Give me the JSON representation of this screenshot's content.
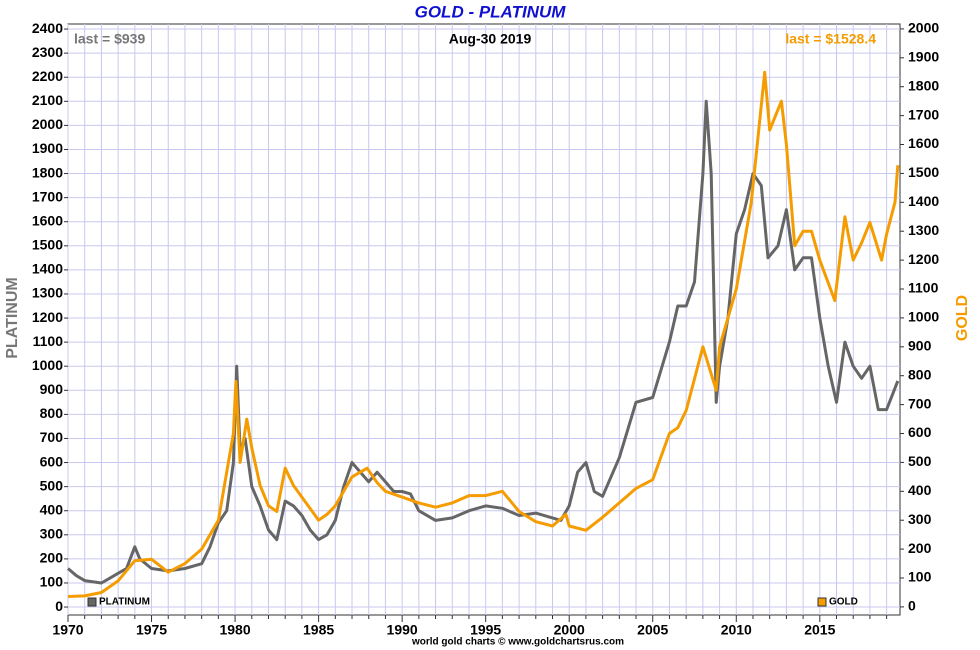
{
  "chart_data": {
    "type": "line",
    "title": "GOLD - PLATINUM",
    "date_label": "Aug-30  2019",
    "last_labels": [
      {
        "text": "last = $939",
        "series": 0
      },
      {
        "text": "last = $1528.4",
        "series": 1
      }
    ],
    "y_label": "PLATINUM",
    "y2_label": "GOLD",
    "footer": "world gold charts © www.goldchartsrus.com",
    "xlim": [
      1970,
      2019.8
    ],
    "xticks": [
      1970,
      1975,
      1980,
      1985,
      1990,
      1995,
      2000,
      2005,
      2010,
      2015
    ],
    "xminorticks": [
      1971,
      1972,
      1973,
      1974,
      1976,
      1977,
      1978,
      1979,
      1981,
      1982,
      1983,
      1984,
      1986,
      1987,
      1988,
      1989,
      1991,
      1992,
      1993,
      1994,
      1996,
      1997,
      1998,
      1999,
      2001,
      2002,
      2003,
      2004,
      2006,
      2007,
      2008,
      2009,
      2011,
      2012,
      2013,
      2014,
      2016,
      2017,
      2018,
      2019
    ],
    "ylim": [
      -33,
      2421
    ],
    "yticks": [
      0,
      100,
      200,
      300,
      400,
      500,
      600,
      700,
      800,
      900,
      1000,
      1100,
      1200,
      1300,
      1400,
      1500,
      1600,
      1700,
      1800,
      1900,
      2000,
      2100,
      2200,
      2300,
      2400
    ],
    "y2lim": [
      -28,
      2017
    ],
    "y2ticks": [
      0,
      100,
      200,
      300,
      400,
      500,
      600,
      700,
      800,
      900,
      1000,
      1100,
      1200,
      1300,
      1400,
      1500,
      1600,
      1700,
      1800,
      1900,
      2000
    ],
    "grid": true,
    "series": [
      {
        "name": "PLATINUM",
        "color": "#666666",
        "x": [
          1970,
          1970.5,
          1971,
          1972,
          1972.5,
          1973,
          1973.5,
          1974,
          1974.3,
          1975,
          1976,
          1977,
          1978,
          1978.5,
          1979,
          1979.5,
          1979.9,
          1980.1,
          1980.3,
          1980.6,
          1981,
          1981.5,
          1982,
          1982.5,
          1983,
          1983.5,
          1984,
          1984.5,
          1985,
          1985.5,
          1986,
          1986.5,
          1987,
          1987.5,
          1988,
          1988.5,
          1989,
          1989.5,
          1990,
          1990.5,
          1991,
          1992,
          1993,
          1994,
          1995,
          1996,
          1997,
          1998,
          1999,
          1999.5,
          2000,
          2000.5,
          2001,
          2001.5,
          2002,
          2003,
          2004,
          2005,
          2006,
          2006.5,
          2007,
          2007.5,
          2008,
          2008.2,
          2008.5,
          2008.8,
          2009,
          2009.5,
          2010,
          2010.5,
          2011,
          2011.5,
          2011.9,
          2012.5,
          2013,
          2013.5,
          2014,
          2014.5,
          2015,
          2015.5,
          2016,
          2016.5,
          2017,
          2017.5,
          2018,
          2018.5,
          2019,
          2019.67
        ],
        "values": [
          160,
          130,
          110,
          100,
          120,
          140,
          160,
          250,
          200,
          160,
          150,
          160,
          180,
          250,
          350,
          400,
          600,
          1000,
          650,
          700,
          500,
          420,
          320,
          280,
          440,
          420,
          380,
          320,
          280,
          300,
          360,
          500,
          600,
          560,
          520,
          560,
          520,
          480,
          480,
          470,
          400,
          360,
          370,
          400,
          420,
          410,
          380,
          390,
          370,
          360,
          420,
          560,
          600,
          480,
          460,
          620,
          850,
          870,
          1100,
          1250,
          1250,
          1350,
          1800,
          2100,
          1800,
          850,
          1000,
          1200,
          1550,
          1650,
          1800,
          1750,
          1450,
          1500,
          1650,
          1400,
          1450,
          1450,
          1200,
          1000,
          850,
          1100,
          1000,
          950,
          1000,
          820,
          820,
          939
        ]
      },
      {
        "name": "GOLD",
        "color": "#f59c00",
        "axis": "y2",
        "x": [
          1970,
          1971,
          1972,
          1973,
          1974,
          1975,
          1976,
          1977,
          1978,
          1979,
          1979.9,
          1980.05,
          1980.3,
          1980.7,
          1981,
          1981.5,
          1982,
          1982.5,
          1983,
          1983.5,
          1984,
          1985,
          1985.5,
          1986,
          1987,
          1987.9,
          1988.5,
          1989,
          1990,
          1991,
          1992,
          1993,
          1994,
          1995,
          1996,
          1997,
          1998,
          1999,
          1999.8,
          2000,
          2001,
          2002,
          2003,
          2004,
          2005,
          2006,
          2006.5,
          2007,
          2008,
          2008.8,
          2009,
          2010,
          2010.9,
          2011.7,
          2012,
          2012.7,
          2013,
          2013.5,
          2014,
          2014.5,
          2015,
          2015.9,
          2016.5,
          2017,
          2017.5,
          2018,
          2018.7,
          2019,
          2019.5,
          2019.67
        ],
        "values": [
          36,
          38,
          50,
          90,
          160,
          165,
          120,
          150,
          200,
          300,
          600,
          780,
          500,
          650,
          550,
          420,
          350,
          330,
          480,
          420,
          380,
          300,
          320,
          350,
          450,
          480,
          430,
          400,
          380,
          360,
          345,
          360,
          385,
          385,
          400,
          330,
          295,
          280,
          320,
          280,
          265,
          310,
          360,
          410,
          440,
          600,
          620,
          680,
          900,
          750,
          900,
          1100,
          1400,
          1850,
          1650,
          1750,
          1600,
          1250,
          1300,
          1300,
          1200,
          1060,
          1350,
          1200,
          1260,
          1330,
          1200,
          1290,
          1400,
          1528.4
        ]
      }
    ]
  }
}
